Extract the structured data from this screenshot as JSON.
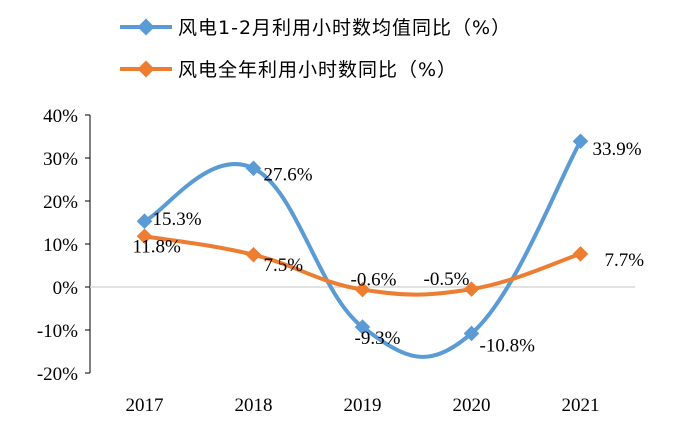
{
  "chart_data": {
    "type": "line",
    "title": "",
    "xlabel": "",
    "ylabel": "",
    "categories": [
      "2017",
      "2018",
      "2019",
      "2020",
      "2021"
    ],
    "ylim": [
      -20,
      40
    ],
    "y_ticks": [
      "40%",
      "30%",
      "20%",
      "10%",
      "0%",
      "-10%",
      "-20%"
    ],
    "y_tick_values": [
      40,
      30,
      20,
      10,
      0,
      -10,
      -20
    ],
    "grid": false,
    "smooth": true,
    "legend_position": "top-left",
    "series": [
      {
        "name": "风电1-2月利用小时数均值同比（%）",
        "color": "#5b9bd5",
        "values": [
          15.3,
          27.6,
          -9.3,
          -10.8,
          33.9
        ],
        "labels": [
          "15.3%",
          "27.6%",
          "-9.3%",
          "-10.8%",
          "33.9%"
        ]
      },
      {
        "name": "风电全年利用小时数同比（%）",
        "color": "#ed7d31",
        "values": [
          11.8,
          7.5,
          -0.6,
          -0.5,
          7.7
        ],
        "labels": [
          "11.8%",
          "7.5%",
          "-0.6%",
          "-0.5%",
          "7.7%"
        ]
      }
    ]
  }
}
